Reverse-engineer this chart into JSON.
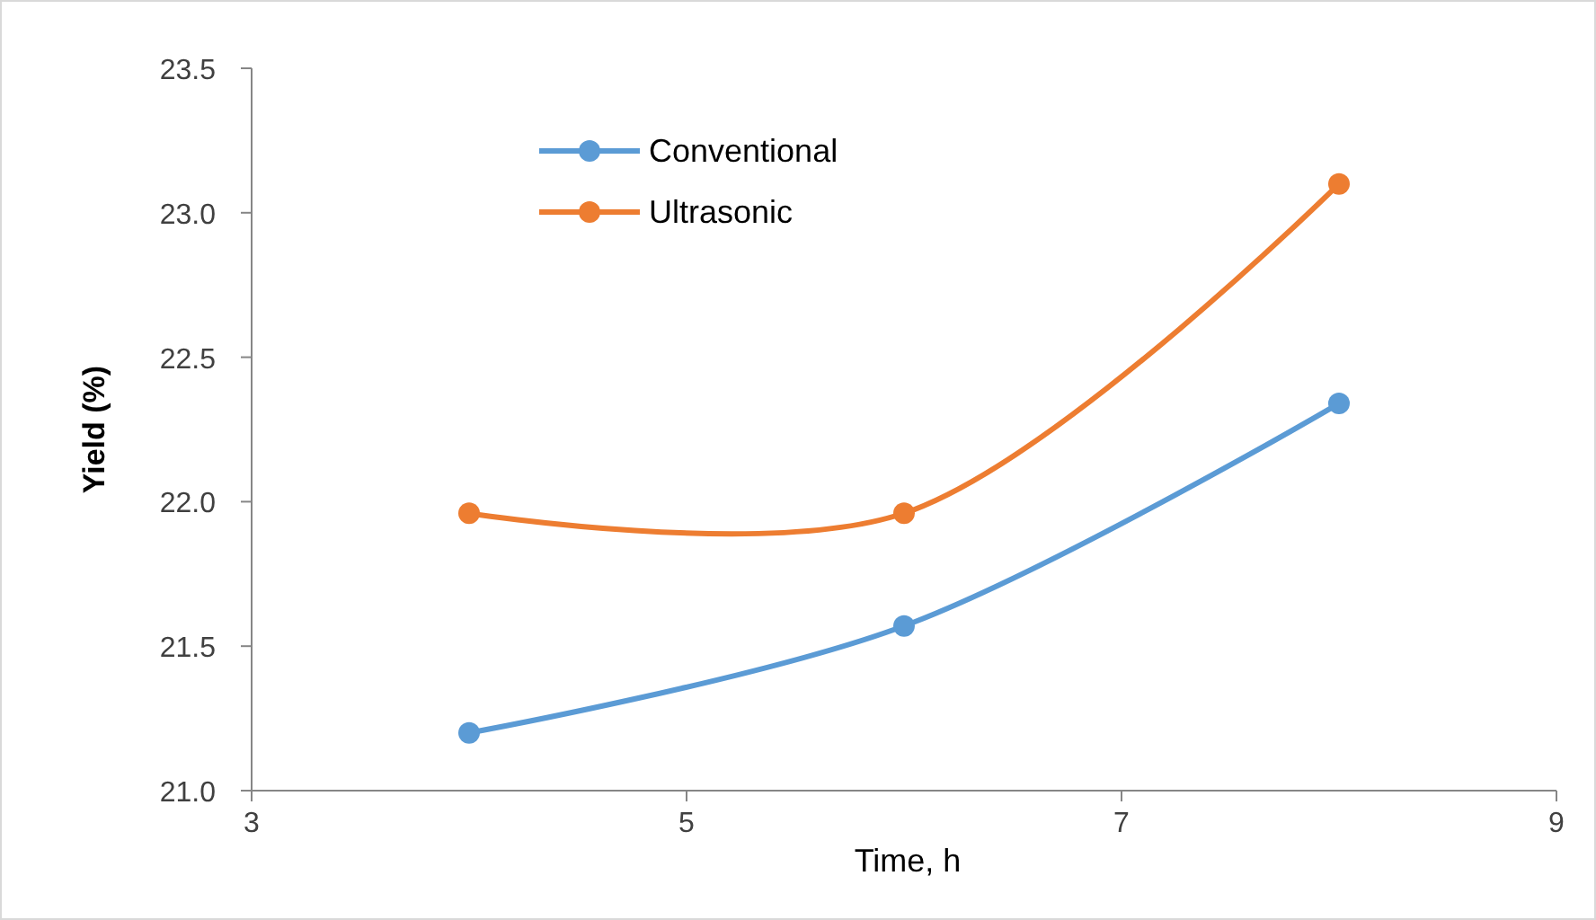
{
  "chart_data": {
    "type": "line",
    "xlabel": "Time, h",
    "ylabel": "Yield (%)",
    "xlim": [
      3,
      9
    ],
    "xticks": [
      3,
      5,
      7,
      9
    ],
    "ylim": [
      21.0,
      23.5
    ],
    "yticks": [
      {
        "value": 21.0,
        "label": "21.0"
      },
      {
        "value": 21.5,
        "label": "21.5"
      },
      {
        "value": 22.0,
        "label": "22.0"
      },
      {
        "value": 22.5,
        "label": "22.5"
      },
      {
        "value": 23.0,
        "label": "23.0"
      },
      {
        "value": 23.5,
        "label": "23.5"
      }
    ],
    "x": [
      4,
      6,
      8
    ],
    "marker": "circle",
    "line_style": "solid",
    "grid": false,
    "legend": "top left",
    "series": [
      {
        "name": "Conventional",
        "color": "#5b9bd5",
        "values": [
          21.2,
          21.57,
          22.34
        ]
      },
      {
        "name": "Ultrasonic",
        "color": "#ed7d31",
        "values": [
          21.96,
          21.96,
          23.1
        ]
      }
    ]
  }
}
